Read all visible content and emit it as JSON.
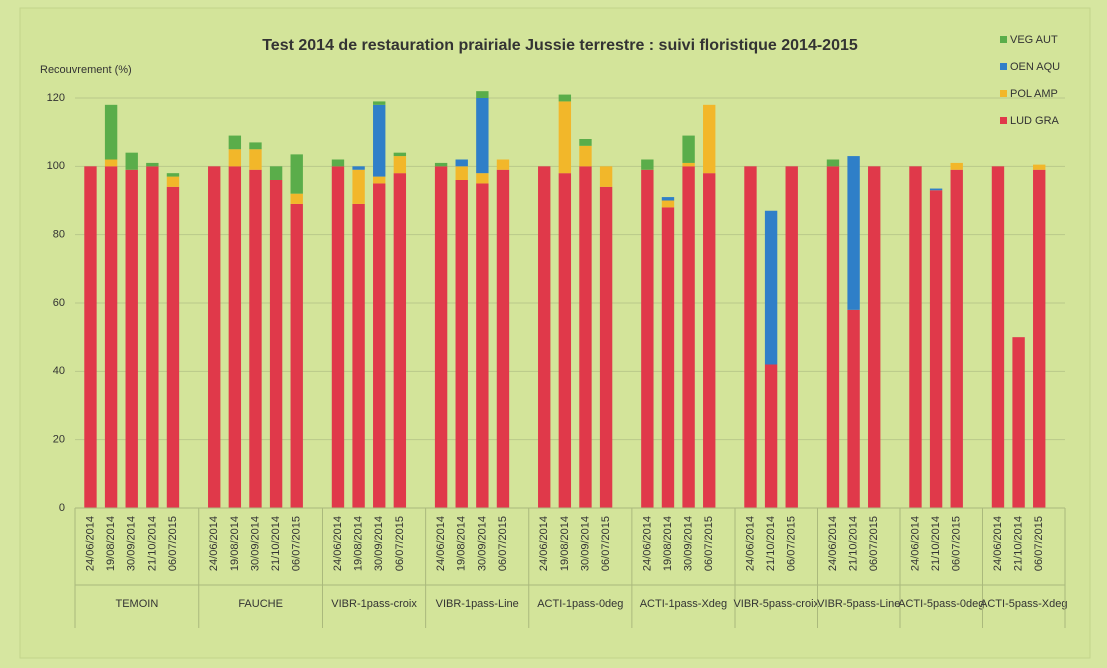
{
  "chart_data": {
    "type": "stacked_bar",
    "title": "Test 2014 de restauration prairiale Jussie terrestre : suivi floristique 2014-2015",
    "y_label": "Recouvrement (%)",
    "groups": [
      {
        "name": "TEMOIN",
        "categories": [
          "24/06/2014",
          "19/08/2014",
          "30/09/2014",
          "21/10/2014",
          "06/07/2015"
        ]
      },
      {
        "name": "FAUCHE",
        "categories": [
          "24/06/2014",
          "19/08/2014",
          "30/09/2014",
          "21/10/2014",
          "06/07/2015"
        ]
      },
      {
        "name": "VIBR-1pass-croix",
        "categories": [
          "24/06/2014",
          "19/08/2014",
          "30/09/2014",
          "06/07/2015"
        ]
      },
      {
        "name": "VIBR-1pass-Line",
        "categories": [
          "24/06/2014",
          "19/08/2014",
          "30/09/2014",
          "06/07/2015"
        ]
      },
      {
        "name": "ACTI-1pass-0deg",
        "categories": [
          "24/06/2014",
          "19/08/2014",
          "30/09/2014",
          "06/07/2015"
        ]
      },
      {
        "name": "ACTI-1pass-Xdeg",
        "categories": [
          "24/06/2014",
          "19/08/2014",
          "30/09/2014",
          "06/07/2015"
        ]
      },
      {
        "name": "VIBR-5pass-croix",
        "categories": [
          "24/06/2014",
          "21/10/2014",
          "06/07/2015"
        ]
      },
      {
        "name": "VIBR-5pass-Line",
        "categories": [
          "24/06/2014",
          "21/10/2014",
          "06/07/2015"
        ]
      },
      {
        "name": "ACTI-5pass-0deg",
        "categories": [
          "24/06/2014",
          "21/10/2014",
          "06/07/2015"
        ]
      },
      {
        "name": "ACTI-5pass-Xdeg",
        "categories": [
          "24/06/2014",
          "21/10/2014",
          "06/07/2015"
        ]
      }
    ],
    "series": [
      {
        "name": "LUD GRA",
        "color": "#e0394a",
        "values": [
          100,
          100,
          99,
          100,
          94,
          100,
          100,
          99,
          96,
          89,
          100,
          89,
          95,
          98,
          100,
          96,
          95,
          99,
          100,
          98,
          100,
          94,
          99,
          88,
          100,
          98,
          100,
          42,
          100,
          100,
          58,
          100,
          100,
          93,
          99,
          100,
          50,
          99
        ]
      },
      {
        "name": "POL AMP",
        "color": "#f2b72a",
        "values": [
          0,
          2,
          0,
          0,
          3,
          0,
          5,
          6,
          0,
          3,
          0,
          10,
          2,
          5,
          0,
          4,
          3,
          3,
          0,
          21,
          6,
          6,
          0,
          2,
          1,
          20,
          0,
          0,
          0,
          0,
          0,
          0,
          0,
          0,
          2,
          0,
          0,
          1.5
        ]
      },
      {
        "name": "OEN AQU",
        "color": "#2f7fc8",
        "values": [
          0,
          0,
          0,
          0,
          0,
          0,
          0,
          0,
          0,
          0,
          0,
          1,
          21,
          0,
          0,
          2,
          22,
          0,
          0,
          0,
          0,
          0,
          0,
          1,
          0,
          0,
          0,
          45,
          0,
          0,
          45,
          0,
          0,
          0.5,
          0,
          0,
          0,
          0
        ]
      },
      {
        "name": "VEG AUT",
        "color": "#5aad4a",
        "values": [
          0,
          16,
          5,
          1,
          1,
          0,
          4,
          2,
          4,
          11.5,
          2,
          0,
          1,
          1,
          1,
          0,
          2,
          0,
          0,
          2,
          2,
          0,
          3,
          0,
          8,
          0,
          0,
          0,
          0,
          2,
          0,
          0,
          0,
          0,
          0,
          0,
          0,
          0
        ]
      }
    ],
    "ylim": [
      0,
      120
    ],
    "yticks": [
      0,
      20,
      40,
      60,
      80,
      100,
      120
    ],
    "grid": true
  }
}
